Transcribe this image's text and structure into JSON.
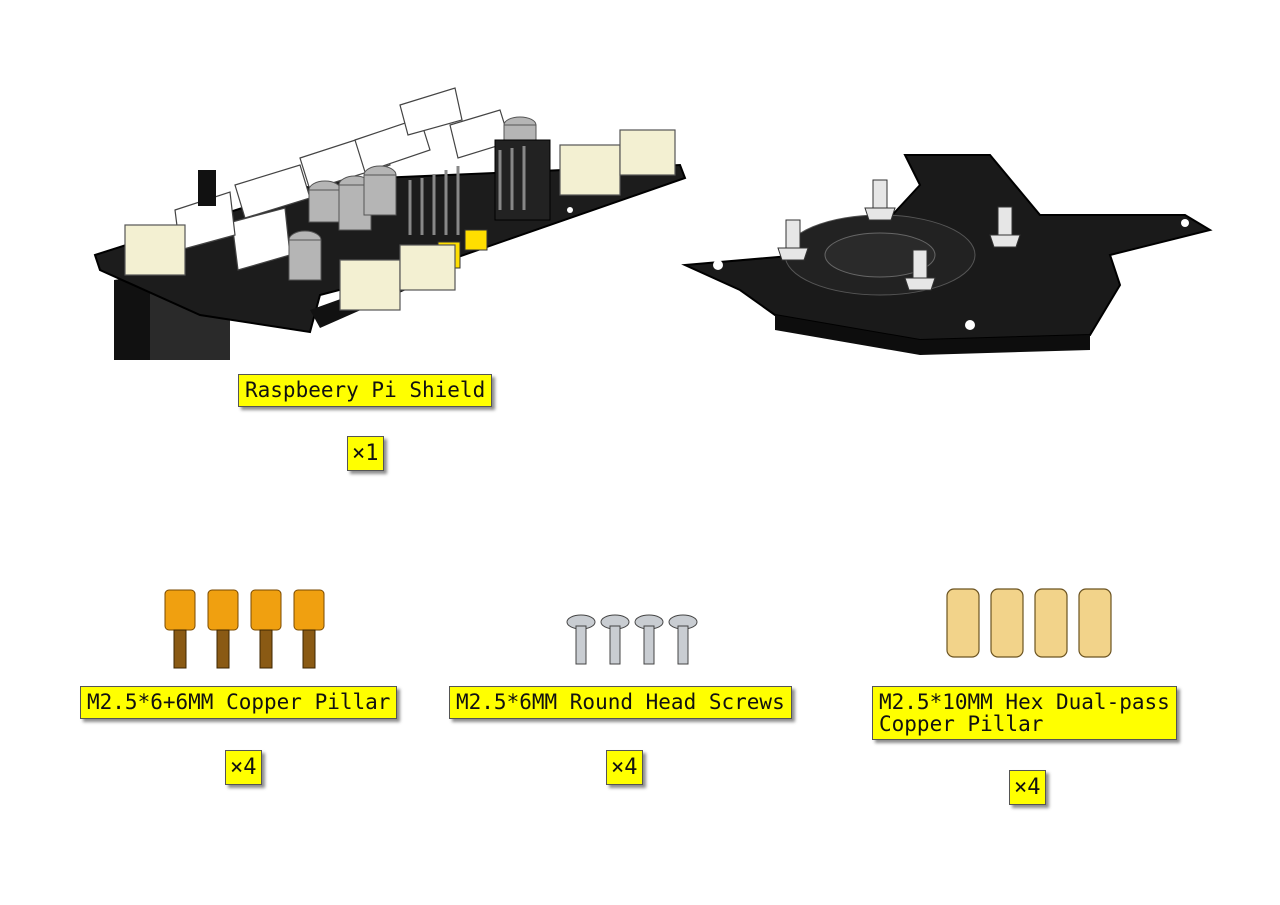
{
  "colors": {
    "label_bg": "#ffff00",
    "board": "#1c1c1c",
    "connector": "#f3f0d2",
    "copper_orange": "#f0a010",
    "brass": "#f2d38a",
    "screw": "#c9cdd2"
  },
  "items": [
    {
      "name": "Raspbeery Pi Shield",
      "qty": "×1"
    },
    {
      "name": "M2.5*6+6MM Copper Pillar",
      "qty": "×4"
    },
    {
      "name": "M2.5*6MM Round Head Screws",
      "qty": "×4"
    },
    {
      "name_line1": "M2.5*10MM Hex Dual-pass",
      "name_line2": "Copper Pillar",
      "qty": "×4"
    }
  ]
}
